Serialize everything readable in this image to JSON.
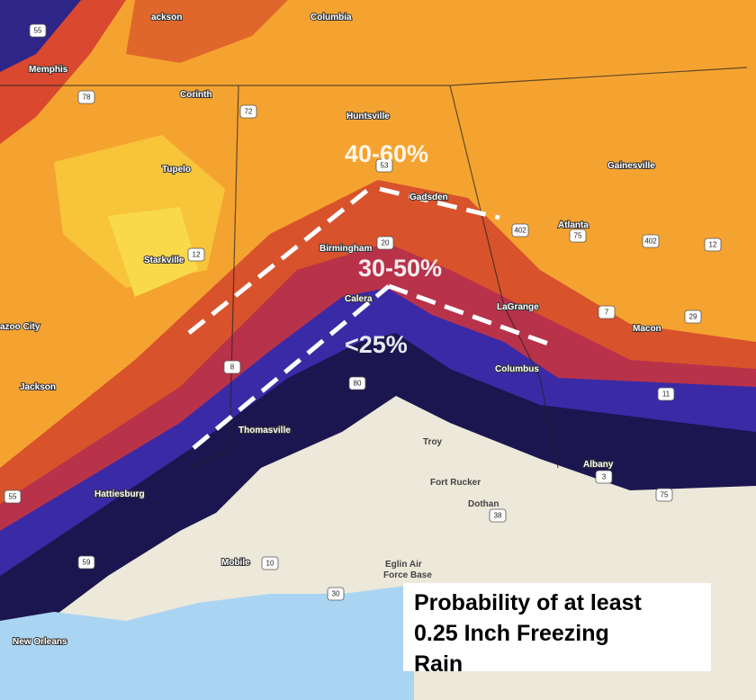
{
  "map": {
    "caption": [
      "Probability of at least",
      "0.25 Inch Freezing",
      "Rain"
    ],
    "annotations": [
      "40-60%",
      "30-50%",
      "<25%"
    ],
    "cities": [
      "ackson",
      "Columbia",
      "Memphis",
      "Corinth",
      "Huntsville",
      "Tupelo",
      "Gadsden",
      "Gainesville",
      "Atlanta",
      "Birmingham",
      "Starkville",
      "Calera",
      "LaGrange",
      "azoo City",
      "Macon",
      "Columbus",
      "Jackson",
      "Thomasville",
      "Troy",
      "Fort Rucker",
      "Dothan",
      "Albany",
      "Hattiesburg",
      "Mobile",
      "Eglin Air",
      "Force Base",
      "New Orleans"
    ],
    "shields": [
      "55",
      "78",
      "72",
      "53",
      "402",
      "75",
      "402",
      "12",
      "20",
      "12",
      "7",
      "29",
      "8",
      "80",
      "11",
      "55",
      "38",
      "10",
      "59",
      "30",
      "75",
      "3"
    ]
  }
}
